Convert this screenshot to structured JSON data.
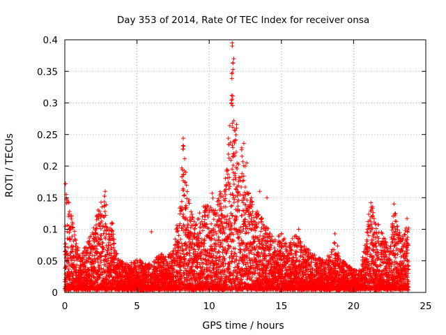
{
  "chart_data": {
    "type": "scatter",
    "title": "Day 353 of 2014, Rate Of TEC Index for receiver onsa",
    "xlabel": "GPS time / hours",
    "ylabel": "ROTI / TECUs",
    "xlim": [
      0,
      25
    ],
    "ylim": [
      0,
      0.4
    ],
    "xticks": [
      "0",
      "5",
      "10",
      "15",
      "20",
      "25"
    ],
    "yticks": [
      "0",
      "0.05",
      "0.1",
      "0.15",
      "0.2",
      "0.25",
      "0.3",
      "0.35",
      "0.4"
    ],
    "grid": true,
    "marker": "+",
    "marker_color": "#ff0000",
    "series": [
      {
        "name": "ROTI",
        "envelope_hours": [
          0,
          0.1,
          0.25,
          0.5,
          1,
          1.5,
          2,
          2.5,
          2.8,
          3,
          3.3,
          3.5,
          4,
          4.5,
          5,
          5.5,
          6,
          6.5,
          7,
          7.5,
          8,
          8.2,
          8.5,
          9,
          9.5,
          10,
          10.5,
          11,
          11.3,
          11.6,
          11.8,
          12,
          12.3,
          12.6,
          13,
          13.5,
          14,
          14.5,
          15,
          15.5,
          16,
          16.5,
          17,
          17.5,
          18,
          18.5,
          18.8,
          19,
          19.5,
          20,
          20.5,
          21,
          21.2,
          21.5,
          22,
          22.5,
          22.8,
          23,
          23.4,
          23.8
        ],
        "envelope_roti": [
          0.06,
          0.17,
          0.15,
          0.11,
          0.06,
          0.07,
          0.1,
          0.14,
          0.16,
          0.09,
          0.11,
          0.06,
          0.045,
          0.04,
          0.05,
          0.04,
          0.04,
          0.06,
          0.05,
          0.06,
          0.14,
          0.24,
          0.15,
          0.11,
          0.13,
          0.14,
          0.16,
          0.15,
          0.23,
          0.395,
          0.27,
          0.21,
          0.23,
          0.16,
          0.15,
          0.12,
          0.1,
          0.08,
          0.09,
          0.07,
          0.09,
          0.07,
          0.06,
          0.05,
          0.045,
          0.06,
          0.09,
          0.05,
          0.04,
          0.03,
          0.03,
          0.11,
          0.14,
          0.12,
          0.09,
          0.06,
          0.14,
          0.1,
          0.09,
          0.1
        ],
        "notable_points": [
          {
            "x": 0.05,
            "y": 0.172
          },
          {
            "x": 0.1,
            "y": 0.155
          },
          {
            "x": 2.8,
            "y": 0.16
          },
          {
            "x": 6.0,
            "y": 0.096
          },
          {
            "x": 8.2,
            "y": 0.244
          },
          {
            "x": 8.2,
            "y": 0.227
          },
          {
            "x": 8.1,
            "y": 0.197
          },
          {
            "x": 10.2,
            "y": 0.157
          },
          {
            "x": 11.6,
            "y": 0.395
          },
          {
            "x": 11.6,
            "y": 0.39
          },
          {
            "x": 11.7,
            "y": 0.37
          },
          {
            "x": 11.65,
            "y": 0.363
          },
          {
            "x": 11.6,
            "y": 0.306
          },
          {
            "x": 11.55,
            "y": 0.3
          },
          {
            "x": 11.9,
            "y": 0.266
          },
          {
            "x": 11.9,
            "y": 0.26
          },
          {
            "x": 12.4,
            "y": 0.236
          },
          {
            "x": 11.6,
            "y": 0.233
          },
          {
            "x": 11.7,
            "y": 0.22
          },
          {
            "x": 12.6,
            "y": 0.205
          },
          {
            "x": 12.5,
            "y": 0.2
          },
          {
            "x": 13.5,
            "y": 0.16
          },
          {
            "x": 14.0,
            "y": 0.15
          },
          {
            "x": 16.2,
            "y": 0.1
          },
          {
            "x": 18.7,
            "y": 0.093
          },
          {
            "x": 21.2,
            "y": 0.142
          },
          {
            "x": 22.8,
            "y": 0.14
          },
          {
            "x": 23.7,
            "y": 0.117
          }
        ]
      }
    ]
  }
}
